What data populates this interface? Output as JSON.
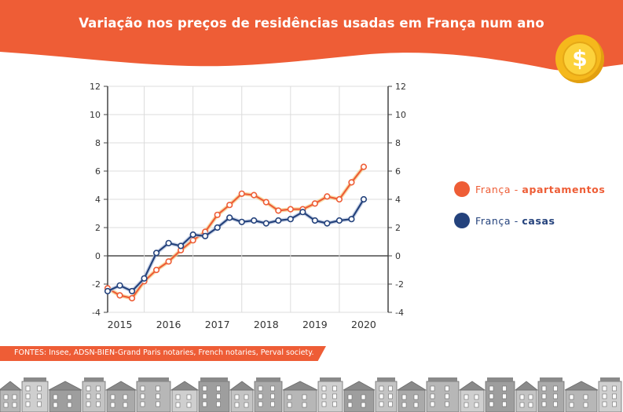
{
  "title": "Variação nos preços de residências usadas em França num ano",
  "source": "FONTES: Insee, ADSN-BIEN-Grand Paris notaries, French notaries, Perval society.",
  "colors": {
    "brand_orange": "#ee5d36",
    "apartments": "#ee5d36",
    "houses": "#24427c",
    "coin": "#f5b81c"
  },
  "icons": {
    "coin": "dollar-coin-icon",
    "coin_symbol": "$"
  },
  "chart_data": {
    "type": "line",
    "title": "Variação nos preços de residências usadas em França num ano",
    "ylim": [
      -4,
      12
    ],
    "yticks": [
      -4,
      -2,
      0,
      2,
      4,
      6,
      8,
      10,
      12
    ],
    "ytick_labels": [
      "-4",
      "-2",
      "0",
      "2",
      "4",
      "6",
      "8",
      "10",
      "12"
    ],
    "xlim": [
      2014.75,
      2020.5
    ],
    "xticks": [
      2015,
      2016,
      2017,
      2018,
      2019,
      2020
    ],
    "xtick_labels": [
      "2015",
      "2016",
      "2017",
      "2018",
      "2019",
      "2020"
    ],
    "grid": true,
    "y_axis_both_sides": true,
    "x_gridlines": [
      2015.5,
      2016.5,
      2017.5,
      2018.5,
      2019.5
    ],
    "legend_position": "right",
    "x": [
      2014.75,
      2015.0,
      2015.25,
      2015.5,
      2015.75,
      2016.0,
      2016.25,
      2016.5,
      2016.75,
      2017.0,
      2017.25,
      2017.5,
      2017.75,
      2018.0,
      2018.25,
      2018.5,
      2018.75,
      2019.0,
      2019.25,
      2019.5,
      2019.75,
      2020.0
    ],
    "series": [
      {
        "name_prefix": "França - ",
        "name_emphasis": "apartamentos",
        "color": "#ee5d36",
        "values": [
          -2.3,
          -2.8,
          -3.0,
          -1.8,
          -1.0,
          -0.4,
          0.4,
          1.1,
          1.7,
          2.9,
          3.6,
          4.4,
          4.3,
          3.8,
          3.2,
          3.3,
          3.3,
          3.7,
          4.2,
          4.0,
          5.2,
          6.3
        ]
      },
      {
        "name_prefix": "França - ",
        "name_emphasis": "casas",
        "color": "#24427c",
        "values": [
          -2.5,
          -2.1,
          -2.5,
          -1.6,
          0.2,
          0.9,
          0.7,
          1.5,
          1.4,
          2.0,
          2.7,
          2.4,
          2.5,
          2.3,
          2.5,
          2.6,
          3.1,
          2.5,
          2.3,
          2.5,
          2.6,
          4.0
        ]
      }
    ]
  }
}
